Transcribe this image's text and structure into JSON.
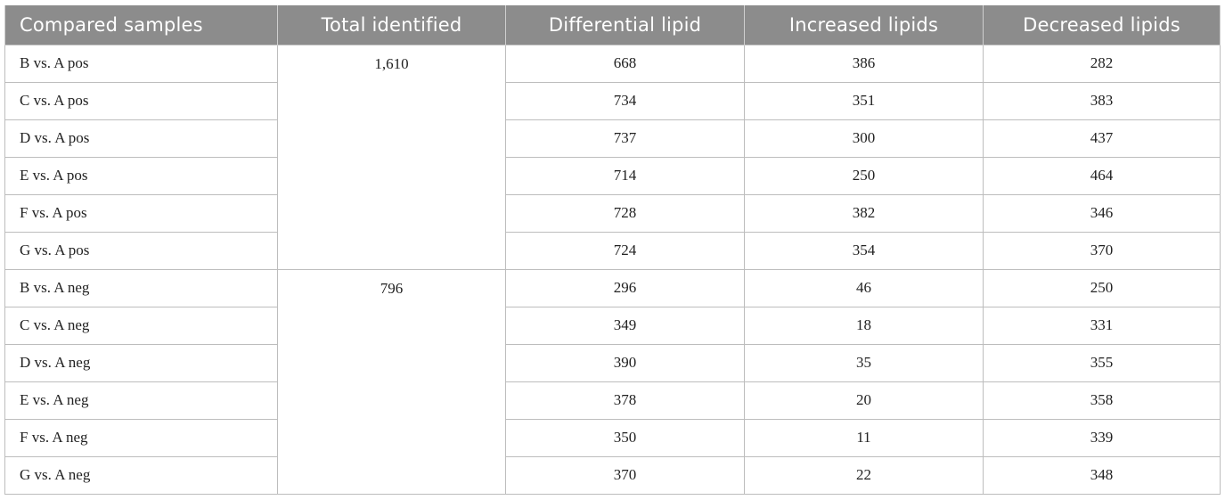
{
  "table": {
    "headers": [
      "Compared samples",
      "Total identified",
      "Differential lipid",
      "Increased lipids",
      "Decreased lipids"
    ],
    "groups": [
      {
        "total": "1,610",
        "rows": [
          {
            "sample": "B vs. A pos",
            "differential": "668",
            "increased": "386",
            "decreased": "282"
          },
          {
            "sample": "C vs. A pos",
            "differential": "734",
            "increased": "351",
            "decreased": "383"
          },
          {
            "sample": "D vs. A pos",
            "differential": "737",
            "increased": "300",
            "decreased": "437"
          },
          {
            "sample": "E vs. A pos",
            "differential": "714",
            "increased": "250",
            "decreased": "464"
          },
          {
            "sample": "F vs. A pos",
            "differential": "728",
            "increased": "382",
            "decreased": "346"
          },
          {
            "sample": "G vs. A pos",
            "differential": "724",
            "increased": "354",
            "decreased": "370"
          }
        ]
      },
      {
        "total": "796",
        "rows": [
          {
            "sample": "B vs. A neg",
            "differential": "296",
            "increased": "46",
            "decreased": "250"
          },
          {
            "sample": "C vs. A neg",
            "differential": "349",
            "increased": "18",
            "decreased": "331"
          },
          {
            "sample": "D vs. A neg",
            "differential": "390",
            "increased": "35",
            "decreased": "355"
          },
          {
            "sample": "E vs. A neg",
            "differential": "378",
            "increased": "20",
            "decreased": "358"
          },
          {
            "sample": "F vs. A neg",
            "differential": "350",
            "increased": "11",
            "decreased": "339"
          },
          {
            "sample": "G vs. A neg",
            "differential": "370",
            "increased": "22",
            "decreased": "348"
          }
        ]
      }
    ]
  },
  "colors": {
    "header_bg": "#8c8c8c",
    "header_text": "#ffffff",
    "border": "#bdbdbd"
  }
}
